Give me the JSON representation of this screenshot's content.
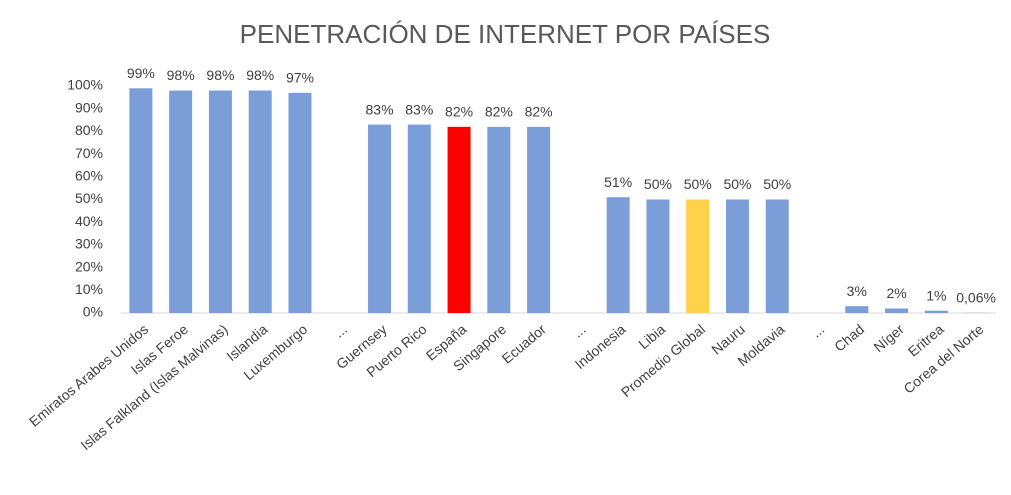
{
  "chart_data": {
    "type": "bar",
    "title": "PENETRACIÓN DE INTERNET POR PAÍSES",
    "categories": [
      "Emiratos Arabes Unidos",
      "Islas Feroe",
      "Islas Falkland (Islas Malvinas)",
      "Islandia",
      "Luxemburgo",
      "...",
      "Guernsey",
      "Puerto Rico",
      "España",
      "Singapore",
      "Ecuador",
      "...",
      "Indonesia",
      "Libia",
      "Promedio Global",
      "Nauru",
      "Moldavia",
      "...",
      "Chad",
      "Níger",
      "Eritrea",
      "Corea del Norte"
    ],
    "values": [
      99,
      98,
      98,
      98,
      97,
      null,
      83,
      83,
      82,
      82,
      82,
      null,
      51,
      50,
      50,
      50,
      50,
      null,
      3,
      2,
      1,
      0.06
    ],
    "value_labels": [
      "99%",
      "98%",
      "98%",
      "98%",
      "97%",
      null,
      "83%",
      "83%",
      "82%",
      "82%",
      "82%",
      null,
      "51%",
      "50%",
      "50%",
      "50%",
      "50%",
      null,
      "3%",
      "2%",
      "1%",
      "0,06%"
    ],
    "colors": [
      "#7b9ed8",
      "#7b9ed8",
      "#7b9ed8",
      "#7b9ed8",
      "#7b9ed8",
      "#7b9ed8",
      "#7b9ed8",
      "#7b9ed8",
      "#ff0000",
      "#7b9ed8",
      "#7b9ed8",
      "#7b9ed8",
      "#7b9ed8",
      "#7b9ed8",
      "#ffd24a",
      "#7b9ed8",
      "#7b9ed8",
      "#7b9ed8",
      "#7b9ed8",
      "#7b9ed8",
      "#7b9ed8",
      "#7b9ed8"
    ],
    "ylim": [
      0,
      100
    ],
    "yticks": [
      {
        "value": 0,
        "label": "0%"
      },
      {
        "value": 10,
        "label": "10%"
      },
      {
        "value": 20,
        "label": "20%"
      },
      {
        "value": 30,
        "label": "30%"
      },
      {
        "value": 40,
        "label": "40%"
      },
      {
        "value": 50,
        "label": "50%"
      },
      {
        "value": 60,
        "label": "60%"
      },
      {
        "value": 70,
        "label": "70%"
      },
      {
        "value": 80,
        "label": "80%"
      },
      {
        "value": 90,
        "label": "90%"
      },
      {
        "value": 100,
        "label": "100%"
      }
    ],
    "grid": false
  }
}
